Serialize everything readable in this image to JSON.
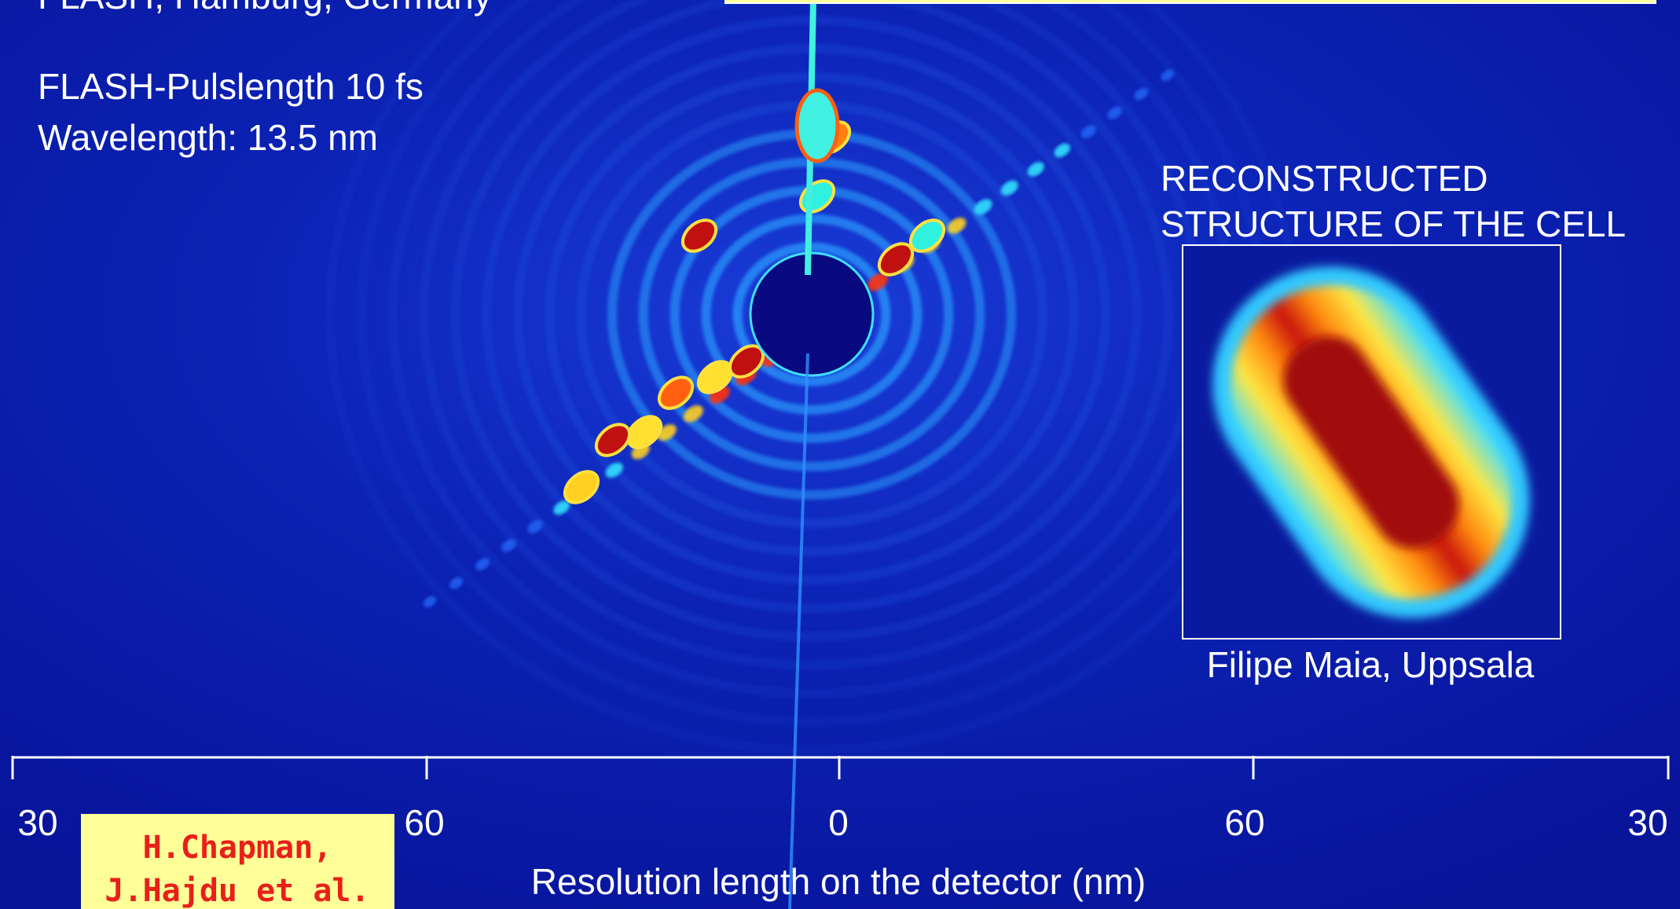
{
  "header": {
    "source": "FLASH, Hamburg, Germany"
  },
  "specs": [
    "FLASH-Pulslength 10 fs",
    "Wavelength: 13.5 nm"
  ],
  "inset": {
    "title_lines": [
      "RECONSTRUCTED",
      "STRUCTURE OF THE CELL"
    ],
    "credit": "Filipe Maia, Uppsala"
  },
  "axis": {
    "tick_labels": [
      "30",
      "60",
      "0",
      "60",
      "30"
    ],
    "label": "Resolution length on the detector (nm)"
  },
  "credit": {
    "lines": [
      "H.Chapman,",
      "J.Hajdu et al."
    ]
  }
}
